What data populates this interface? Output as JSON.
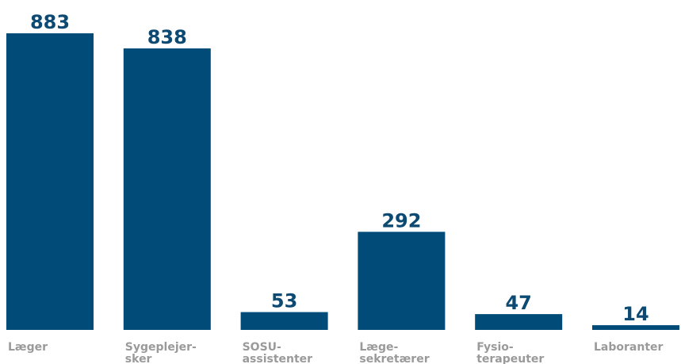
{
  "chart_data": {
    "type": "bar",
    "categories": [
      "Læger",
      "Sygeplejer-\nsker",
      "SOSU-\nassistenter",
      "Læge-\nsekretærer",
      "Fysio-\nterapeuter",
      "Laboranter"
    ],
    "values": [
      883,
      838,
      53,
      292,
      47,
      14
    ],
    "color": "#004b78"
  }
}
